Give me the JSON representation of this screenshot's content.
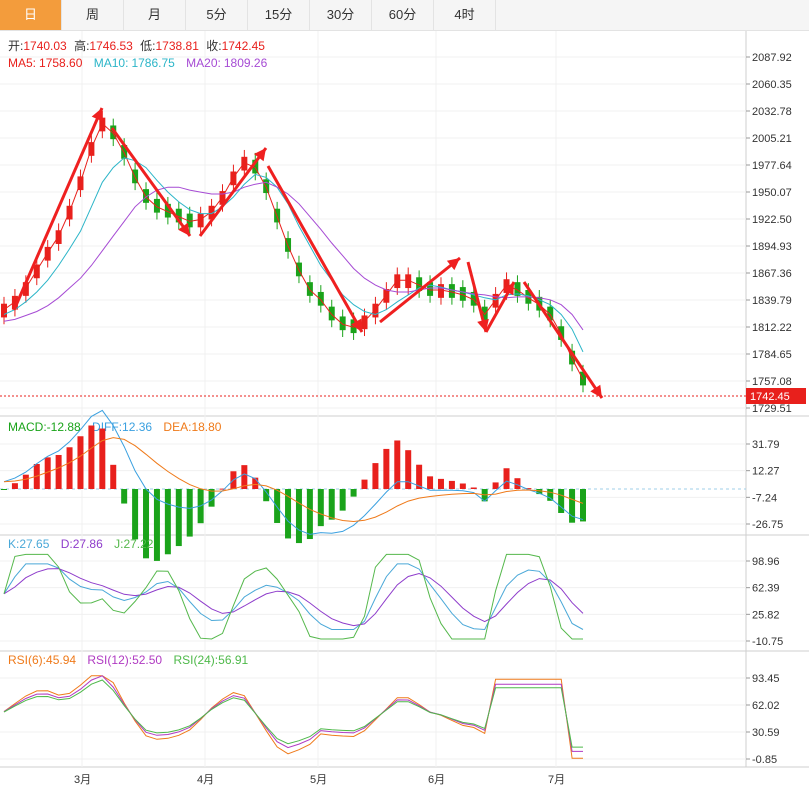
{
  "tabs": [
    "日",
    "周",
    "月",
    "5分",
    "15分",
    "30分",
    "60分",
    "4时"
  ],
  "active_tab": "日",
  "colors": {
    "up": "#e8201c",
    "down": "#1aa31a",
    "ma5": "#e8201c",
    "ma10": "#2bb5c8",
    "ma20": "#a64bd4",
    "diff": "#3aa0e0",
    "dea": "#ef7a1a",
    "k": "#4aa8d8",
    "d": "#8e3ccb",
    "j": "#55b84c",
    "rsi6": "#ef7a1a",
    "rsi12": "#b03ac2",
    "rsi24": "#4eb94a"
  },
  "price_panel": {
    "open_label": "开:",
    "open": "1740.03",
    "high_label": "高:",
    "high": "1746.53",
    "low_label": "低:",
    "low": "1738.81",
    "close_label": "收:",
    "close": "1742.45",
    "ma5_label": "MA5:",
    "ma5": "1758.60",
    "ma10_label": "MA10:",
    "ma10": "1786.75",
    "ma20_label": "MA20:",
    "ma20": "1809.26",
    "y_ticks": [
      "2087.92",
      "2060.35",
      "2032.78",
      "2005.21",
      "1977.64",
      "1950.07",
      "1922.50",
      "1894.93",
      "1867.36",
      "1839.79",
      "1812.22",
      "1784.65",
      "1757.08",
      "1729.51"
    ],
    "current_price": "1742.45"
  },
  "macd_panel": {
    "macd_label": "MACD:",
    "macd": "-12.88",
    "diff_label": "DIFF:",
    "diff": "12.36",
    "dea_label": "DEA:",
    "dea": "18.80",
    "y_ticks": [
      "31.79",
      "12.27",
      "-7.24",
      "-26.75"
    ]
  },
  "kdj_panel": {
    "k_label": "K:",
    "k": "27.65",
    "d_label": "D:",
    "d": "27.86",
    "j_label": "J:",
    "j": "27.22",
    "y_ticks": [
      "98.96",
      "62.39",
      "25.82",
      "-10.75"
    ]
  },
  "rsi_panel": {
    "rsi6_label": "RSI(6):",
    "rsi6": "45.94",
    "rsi12_label": "RSI(12):",
    "rsi12": "52.50",
    "rsi24_label": "RSI(24):",
    "rsi24": "56.91",
    "y_ticks": [
      "93.45",
      "62.02",
      "30.59",
      "-0.85"
    ]
  },
  "x_axis": {
    "months": [
      "3月",
      "4月",
      "5月",
      "6月",
      "7月"
    ]
  },
  "chart_data": {
    "type": "candlestick",
    "price": {
      "ylim": [
        1729.51,
        2087.92
      ],
      "ma5": [
        1830,
        1838,
        1852,
        1870,
        1888,
        1905,
        1930,
        1960,
        1995,
        2020,
        2010,
        1990,
        1965,
        1945,
        1935,
        1930,
        1925,
        1920,
        1922,
        1930,
        1945,
        1965,
        1980,
        1975,
        1955,
        1925,
        1895,
        1870,
        1850,
        1840,
        1825,
        1815,
        1812,
        1818,
        1830,
        1845,
        1860,
        1860,
        1855,
        1850,
        1850,
        1848,
        1845,
        1840,
        1825,
        1840,
        1855,
        1850,
        1842,
        1835,
        1825,
        1805,
        1780,
        1758.6
      ],
      "ma10": [
        1825,
        1830,
        1838,
        1848,
        1860,
        1875,
        1892,
        1910,
        1935,
        1960,
        1975,
        1985,
        1982,
        1975,
        1962,
        1950,
        1940,
        1932,
        1928,
        1928,
        1935,
        1945,
        1958,
        1968,
        1965,
        1955,
        1938,
        1915,
        1895,
        1875,
        1860,
        1845,
        1835,
        1828,
        1825,
        1830,
        1838,
        1845,
        1852,
        1855,
        1853,
        1850,
        1848,
        1845,
        1842,
        1840,
        1845,
        1846,
        1844,
        1840,
        1835,
        1825,
        1810,
        1786.75
      ],
      "ma20": [
        1818,
        1820,
        1824,
        1828,
        1834,
        1842,
        1852,
        1862,
        1875,
        1890,
        1905,
        1920,
        1935,
        1945,
        1952,
        1955,
        1955,
        1952,
        1950,
        1948,
        1948,
        1950,
        1955,
        1958,
        1960,
        1955,
        1948,
        1938,
        1925,
        1912,
        1898,
        1885,
        1872,
        1862,
        1855,
        1850,
        1848,
        1848,
        1850,
        1852,
        1852,
        1850,
        1848,
        1846,
        1845,
        1843,
        1842,
        1843,
        1843,
        1842,
        1840,
        1835,
        1825,
        1809.26
      ],
      "current": 1742.45
    },
    "macd": {
      "ylim": [
        -30,
        40
      ],
      "macd": -12.88,
      "diff": 12.36,
      "dea": 18.8
    },
    "kdj": {
      "ylim": [
        -10.75,
        110
      ],
      "k": 27.65,
      "d": 27.86,
      "j": 27.22
    },
    "rsi": {
      "ylim": [
        -0.85,
        100
      ],
      "rsi6": 45.94,
      "rsi12": 52.5,
      "rsi24": 56.91
    }
  }
}
